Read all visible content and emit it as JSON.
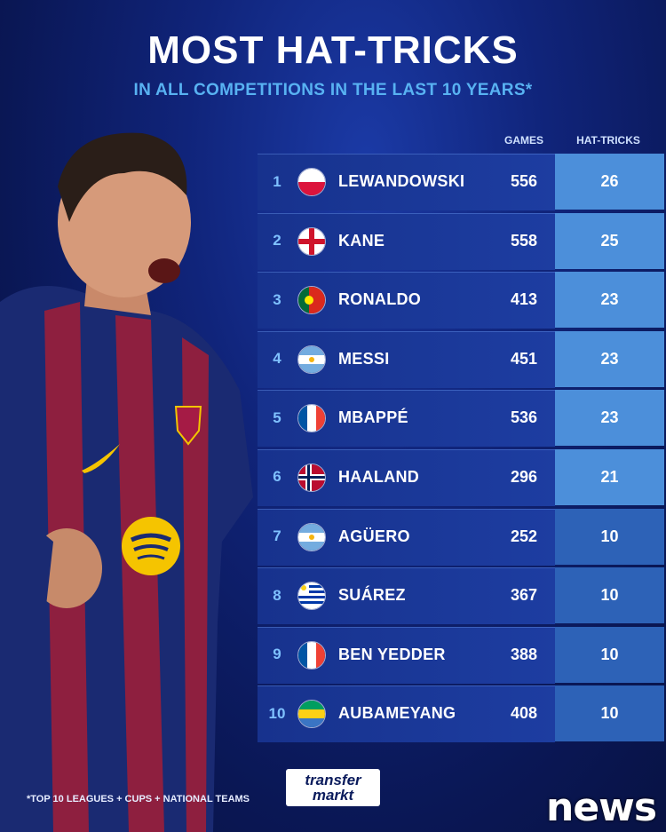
{
  "header": {
    "title": "MOST HAT-TRICKS",
    "subtitle": "IN ALL COMPETITIONS IN THE LAST 10 YEARS*"
  },
  "table": {
    "col_games": "GAMES",
    "col_hattricks": "HAT-TRICKS",
    "rows": [
      {
        "rank": "1",
        "name": "LEWANDOWSKI",
        "games": "556",
        "hattricks": "26",
        "flag": "poland"
      },
      {
        "rank": "2",
        "name": "KANE",
        "games": "558",
        "hattricks": "25",
        "flag": "england"
      },
      {
        "rank": "3",
        "name": "RONALDO",
        "games": "413",
        "hattricks": "23",
        "flag": "portugal"
      },
      {
        "rank": "4",
        "name": "MESSI",
        "games": "451",
        "hattricks": "23",
        "flag": "argentina"
      },
      {
        "rank": "5",
        "name": "MBAPPÉ",
        "games": "536",
        "hattricks": "23",
        "flag": "france"
      },
      {
        "rank": "6",
        "name": "HAALAND",
        "games": "296",
        "hattricks": "21",
        "flag": "norway"
      },
      {
        "rank": "7",
        "name": "AGÜERO",
        "games": "252",
        "hattricks": "10",
        "flag": "argentina"
      },
      {
        "rank": "8",
        "name": "SUÁREZ",
        "games": "367",
        "hattricks": "10",
        "flag": "uruguay"
      },
      {
        "rank": "9",
        "name": "BEN YEDDER",
        "games": "388",
        "hattricks": "10",
        "flag": "france"
      },
      {
        "rank": "10",
        "name": "AUBAMEYANG",
        "games": "408",
        "hattricks": "10",
        "flag": "gabon"
      }
    ]
  },
  "footer": {
    "footnote": "*TOP 10 LEAGUES + CUPS + NATIONAL TEAMS",
    "logo_line1": "transfer",
    "logo_line2": "markt",
    "watermark": "news"
  },
  "colors": {
    "background": "#0a1755",
    "subtitle": "#58b2f2",
    "row_bg": "#1d3da1",
    "hat_cell_top": "#4c8fda",
    "hat_cell_bottom": "#2d62b7"
  }
}
